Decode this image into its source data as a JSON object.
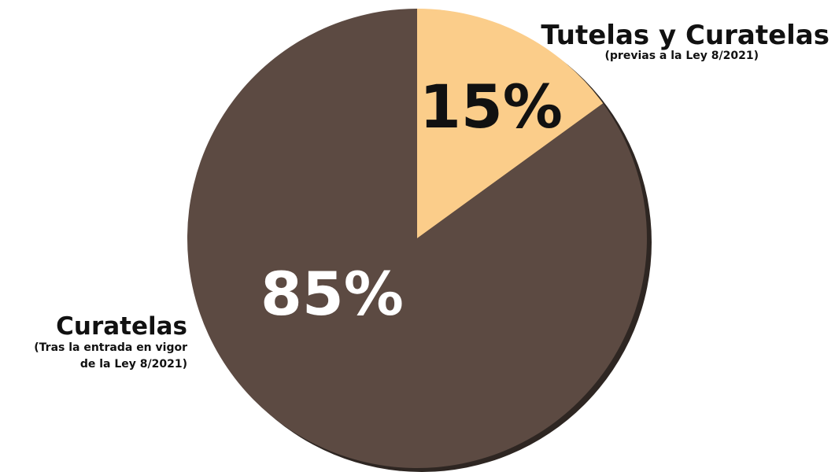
{
  "chart_data": {
    "type": "pie",
    "slices": [
      {
        "label": "Tutelas y Curatelas",
        "sublabel": [
          "(previas a la Ley 8/2021)"
        ],
        "value": 15,
        "display": "15%",
        "color": "#fbcd8a",
        "text_color": "#111111"
      },
      {
        "label": "Curatelas",
        "sublabel": [
          "(Tras la entrada en vigor",
          "de la Ley 8/2021)"
        ],
        "value": 85,
        "display": "85%",
        "color": "#5c4a42",
        "text_color": "#ffffff"
      }
    ],
    "colors": {
      "shadow": "#2e2622"
    }
  }
}
